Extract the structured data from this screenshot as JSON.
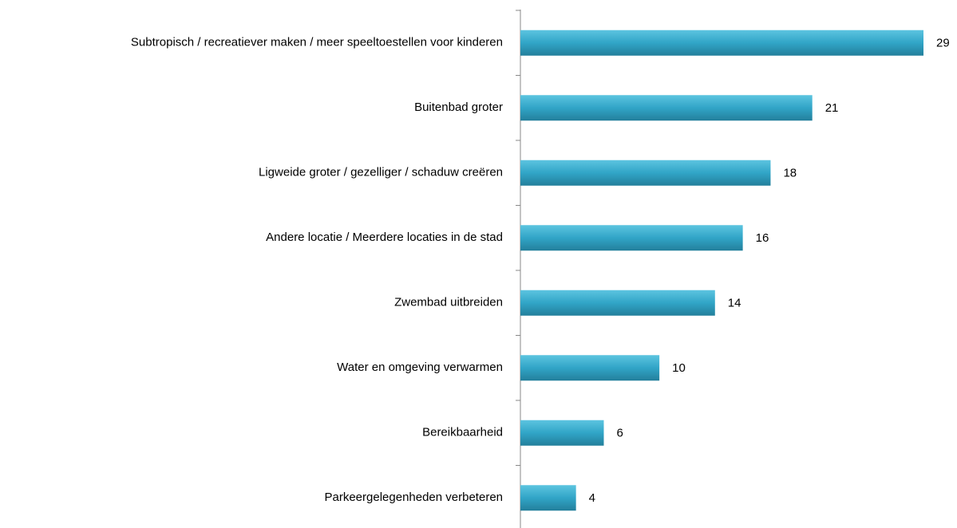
{
  "chart_data": {
    "type": "bar",
    "orientation": "horizontal",
    "categories": [
      "Subtropisch / recreatiever maken / meer speeltoestellen voor kinderen",
      "Buitenbad groter",
      "Ligweide groter / gezelliger / schaduw creëren",
      "Andere locatie / Meerdere locaties in de stad",
      "Zwembad uitbreiden",
      "Water en omgeving verwarmen",
      "Bereikbaarheid",
      "Parkeergelegenheden verbeteren"
    ],
    "values": [
      29,
      21,
      18,
      16,
      14,
      10,
      6,
      4
    ],
    "color": "#31a5c7"
  }
}
